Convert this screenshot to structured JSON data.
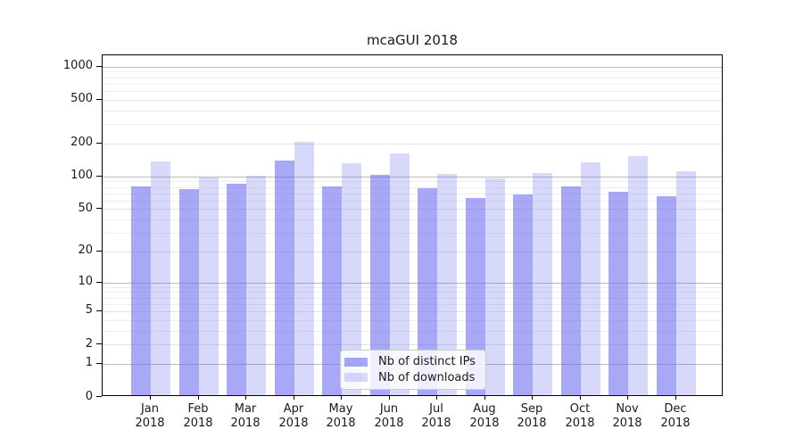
{
  "chart_data": {
    "type": "bar",
    "title": "mcaGUI 2018",
    "categories": [
      "Jan",
      "Feb",
      "Mar",
      "Apr",
      "May",
      "Jun",
      "Jul",
      "Aug",
      "Sep",
      "Oct",
      "Nov",
      "Dec"
    ],
    "x_year_label": "2018",
    "series": [
      {
        "name": "Nb of distinct IPs",
        "color": "rgba(105,105,240,0.58)",
        "values": [
          78,
          73,
          83,
          135,
          78,
          99,
          75,
          61,
          66,
          78,
          70,
          63
        ]
      },
      {
        "name": "Nb of downloads",
        "color": "rgba(105,105,240,0.26)",
        "values": [
          132,
          94,
          98,
          201,
          128,
          157,
          101,
          93,
          103,
          129,
          148,
          107
        ]
      }
    ],
    "y_axis": {
      "scale": "log1p",
      "ticks": [
        0,
        1,
        2,
        5,
        10,
        20,
        50,
        100,
        200,
        500,
        1000
      ],
      "minor_ticks": [
        3,
        4,
        6,
        7,
        8,
        9,
        30,
        40,
        60,
        70,
        80,
        90,
        300,
        400,
        600,
        700,
        800,
        900
      ],
      "ylim": [
        0,
        1270
      ]
    },
    "legend_position": "lower center",
    "grid": true
  },
  "colors": {
    "grid_major": "#b9b9b9",
    "grid_mid": "#e2e2e2",
    "grid_minor": "#efefef",
    "spine": "#000000",
    "text": "#1a1a1a",
    "legend_border": "#cccccc",
    "legend_bg": "rgba(255,255,255,0.82)"
  }
}
